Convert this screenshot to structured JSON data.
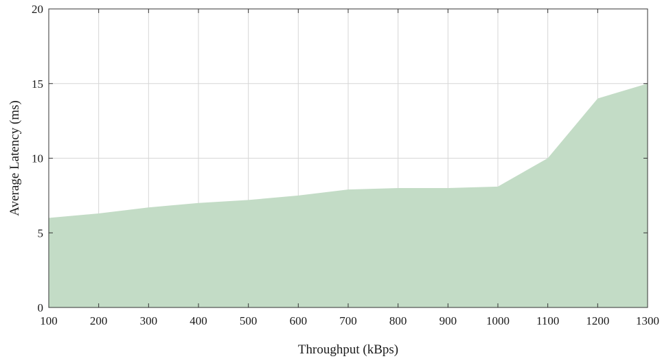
{
  "chart_data": {
    "type": "area",
    "title": "",
    "xlabel": "Throughput (kBps)",
    "ylabel": "Average Latency (ms)",
    "x": [
      100,
      200,
      300,
      400,
      500,
      600,
      700,
      800,
      900,
      1000,
      1100,
      1200,
      1300
    ],
    "series": [
      {
        "values": [
          6.0,
          6.3,
          6.7,
          7.0,
          7.2,
          7.5,
          7.9,
          8.0,
          8.0,
          8.1,
          10.0,
          14.0,
          15.0
        ],
        "color": "#c3dcc6"
      }
    ],
    "xlim": [
      100,
      1300
    ],
    "ylim": [
      0,
      20
    ],
    "xticks": [
      100,
      200,
      300,
      400,
      500,
      600,
      700,
      800,
      900,
      1000,
      1100,
      1200,
      1300
    ],
    "yticks": [
      0,
      5,
      10,
      15,
      20
    ],
    "grid": true,
    "legend": "none"
  }
}
